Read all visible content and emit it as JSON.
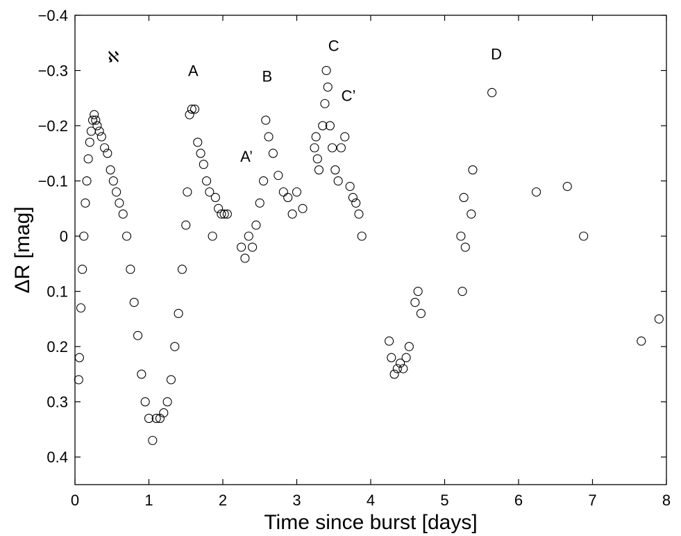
{
  "chart_data": {
    "type": "scatter",
    "title": "",
    "xlabel": "Time since burst [days]",
    "ylabel": "ΔR [mag]",
    "xlim": [
      0,
      8
    ],
    "ylim": [
      0.45,
      -0.4
    ],
    "y_inverted": true,
    "grid": false,
    "marker": "open-circle",
    "xticks": [
      0,
      1,
      2,
      3,
      4,
      5,
      6,
      7,
      8
    ],
    "xtick_labels": [
      "0",
      "1",
      "2",
      "3",
      "4",
      "5",
      "6",
      "7",
      "8"
    ],
    "yticks": [
      -0.4,
      -0.3,
      -0.2,
      -0.1,
      0,
      0.1,
      0.2,
      0.3,
      0.4
    ],
    "ytick_labels": [
      "−0.4",
      "−0.3",
      "−0.2",
      "−0.1",
      "0",
      "0.1",
      "0.2",
      "0.3",
      "0.4"
    ],
    "annotations": [
      {
        "text": "ℵ",
        "x": 0.52,
        "y": -0.315
      },
      {
        "text": "A",
        "x": 1.6,
        "y": -0.29
      },
      {
        "text": "A’",
        "x": 2.32,
        "y": -0.135
      },
      {
        "text": "B",
        "x": 2.6,
        "y": -0.28
      },
      {
        "text": "C",
        "x": 3.5,
        "y": -0.335
      },
      {
        "text": "C’",
        "x": 3.7,
        "y": -0.245
      },
      {
        "text": "D",
        "x": 5.7,
        "y": -0.32
      }
    ],
    "series": [
      {
        "x": [
          0.05,
          0.06,
          0.08,
          0.1,
          0.12,
          0.14,
          0.16,
          0.18,
          0.2,
          0.22,
          0.24,
          0.26,
          0.28,
          0.3,
          0.33,
          0.36,
          0.4,
          0.44,
          0.48,
          0.52,
          0.56,
          0.6,
          0.65,
          0.7,
          0.75,
          0.8,
          0.85,
          0.9,
          0.95,
          1.0,
          1.05,
          1.1,
          1.15,
          1.2,
          1.25,
          1.3,
          1.35,
          1.4,
          1.45,
          1.5,
          1.52,
          1.55,
          1.58,
          1.62,
          1.66,
          1.7,
          1.74,
          1.78,
          1.82,
          1.86,
          1.9,
          1.94,
          1.98,
          2.02,
          2.06,
          2.25,
          2.3,
          2.35,
          2.4,
          2.45,
          2.5,
          2.55,
          2.58,
          2.62,
          2.68,
          2.75,
          2.82,
          2.88,
          2.94,
          3.0,
          3.08,
          3.24,
          3.26,
          3.28,
          3.3,
          3.35,
          3.38,
          3.4,
          3.42,
          3.45,
          3.48,
          3.52,
          3.56,
          3.6,
          3.65,
          3.72,
          3.76,
          3.8,
          3.84,
          3.88,
          4.25,
          4.28,
          4.32,
          4.36,
          4.4,
          4.44,
          4.48,
          4.52,
          4.6,
          4.64,
          4.68,
          5.22,
          5.24,
          5.26,
          5.28,
          5.36,
          5.38,
          5.64,
          6.24,
          6.66,
          6.88,
          7.66,
          7.9
        ],
        "y": [
          0.26,
          0.22,
          0.13,
          0.06,
          0.0,
          -0.06,
          -0.1,
          -0.14,
          -0.17,
          -0.19,
          -0.21,
          -0.22,
          -0.21,
          -0.2,
          -0.19,
          -0.18,
          -0.16,
          -0.15,
          -0.12,
          -0.1,
          -0.08,
          -0.06,
          -0.04,
          0.0,
          0.06,
          0.12,
          0.18,
          0.25,
          0.3,
          0.33,
          0.37,
          0.33,
          0.33,
          0.32,
          0.3,
          0.26,
          0.2,
          0.14,
          0.06,
          -0.02,
          -0.08,
          -0.22,
          -0.23,
          -0.23,
          -0.17,
          -0.15,
          -0.13,
          -0.1,
          -0.08,
          0.0,
          -0.07,
          -0.05,
          -0.04,
          -0.04,
          -0.04,
          0.02,
          0.04,
          0.0,
          0.02,
          -0.02,
          -0.06,
          -0.1,
          -0.21,
          -0.18,
          -0.15,
          -0.11,
          -0.08,
          -0.07,
          -0.04,
          -0.08,
          -0.05,
          -0.16,
          -0.18,
          -0.14,
          -0.12,
          -0.2,
          -0.24,
          -0.3,
          -0.27,
          -0.2,
          -0.16,
          -0.12,
          -0.1,
          -0.16,
          -0.18,
          -0.09,
          -0.07,
          -0.06,
          -0.04,
          0.0,
          0.19,
          0.22,
          0.25,
          0.24,
          0.23,
          0.24,
          0.22,
          0.2,
          0.12,
          0.1,
          0.14,
          0.0,
          0.1,
          -0.07,
          0.02,
          -0.04,
          -0.12,
          -0.26,
          -0.08,
          -0.09,
          0.0,
          0.19,
          0.15
        ]
      }
    ]
  }
}
